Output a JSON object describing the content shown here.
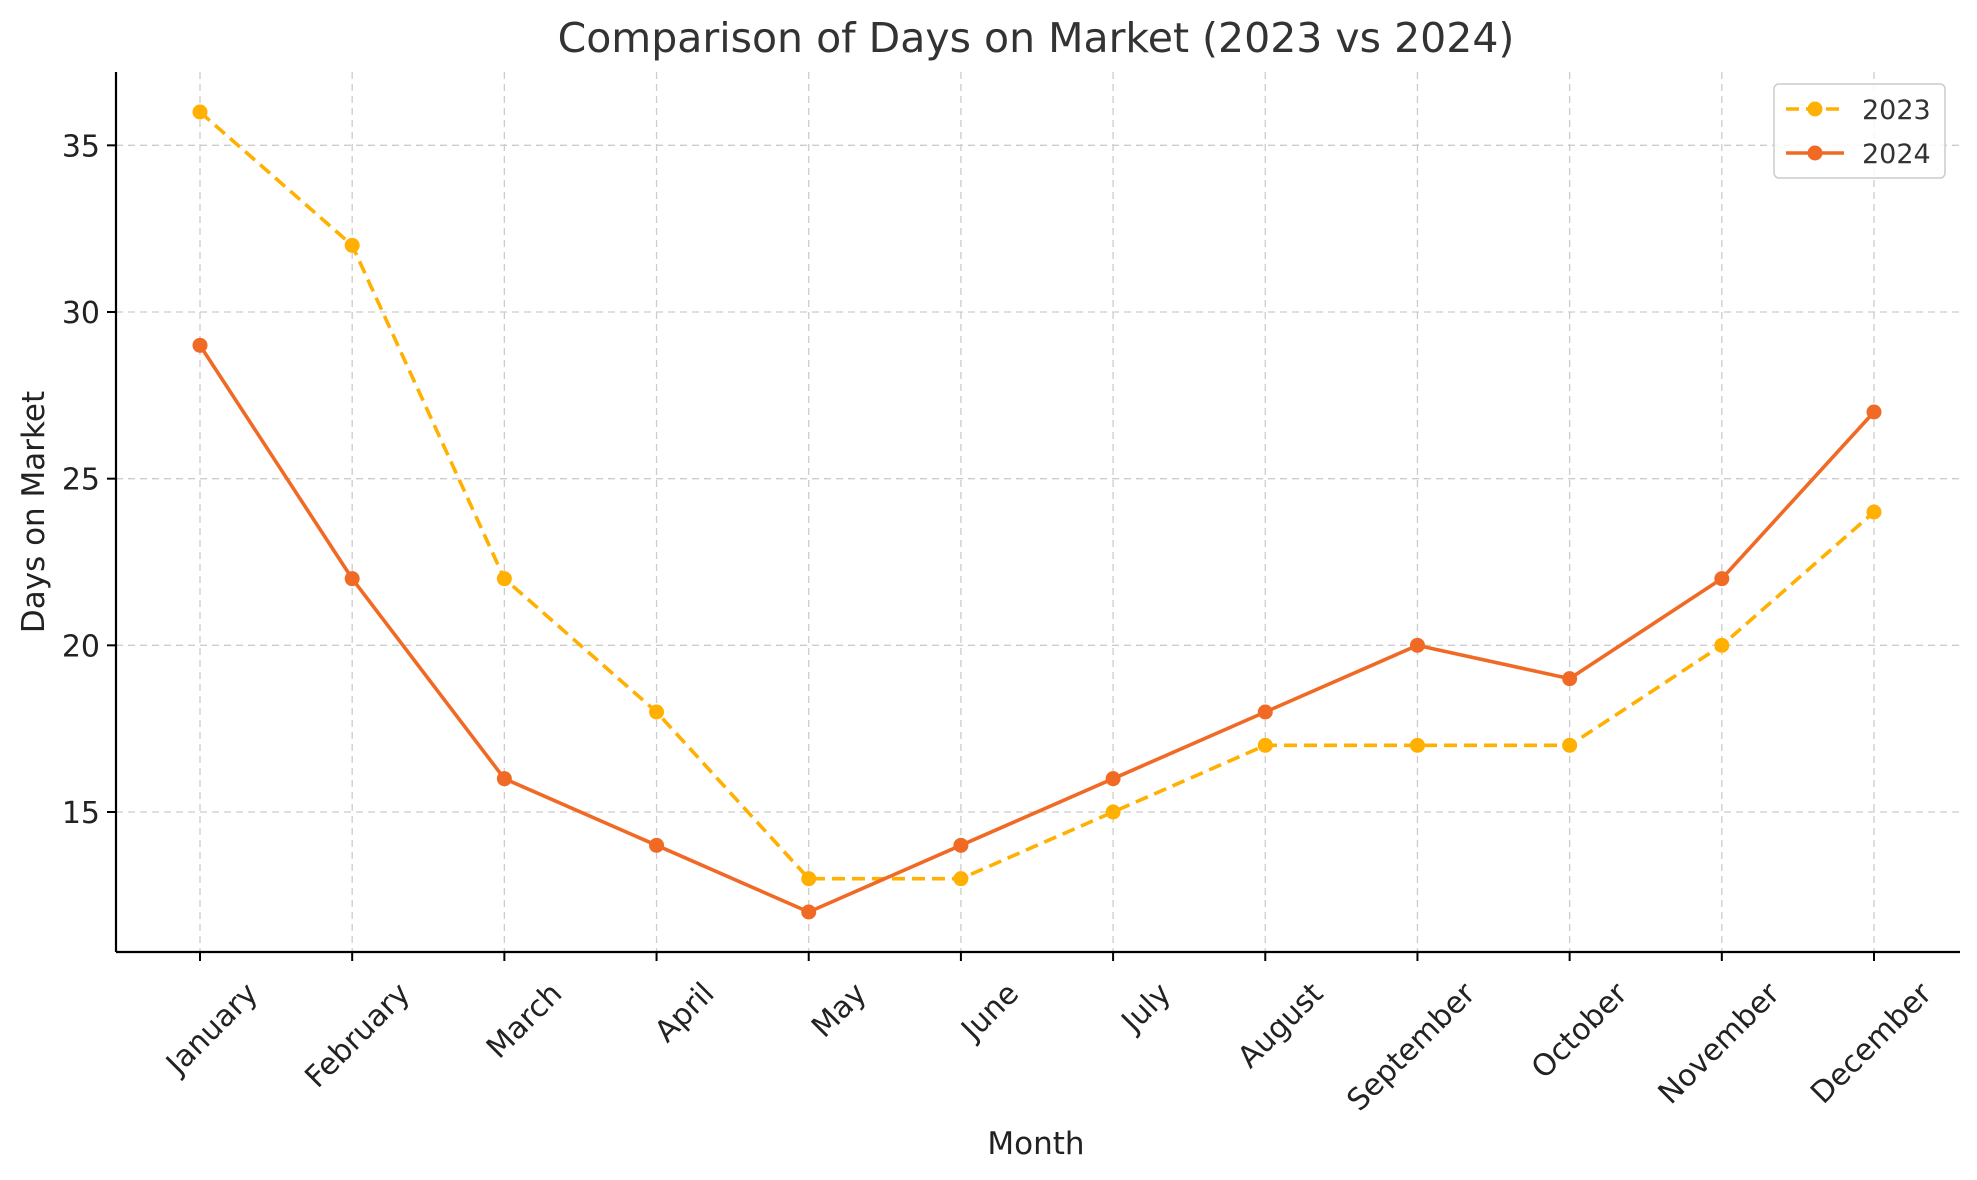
{
  "chart_data": {
    "type": "line",
    "title": "Comparison of Days on Market (2023 vs 2024)",
    "xlabel": "Month",
    "ylabel": "Days on Market",
    "categories": [
      "January",
      "February",
      "March",
      "April",
      "May",
      "June",
      "July",
      "August",
      "September",
      "October",
      "November",
      "December"
    ],
    "ylim": [
      10.8,
      37.2
    ],
    "yticks": [
      15,
      20,
      25,
      30,
      35
    ],
    "grid": true,
    "legend_position": "top-right",
    "series": [
      {
        "name": "2023",
        "values": [
          36,
          32,
          22,
          18,
          13,
          13,
          15,
          17,
          17,
          17,
          20,
          24
        ],
        "color": "#ffb000",
        "line_style": "dashed",
        "marker": "circle"
      },
      {
        "name": "2024",
        "values": [
          29,
          22,
          16,
          14,
          12,
          14,
          16,
          18,
          20,
          19,
          22,
          27
        ],
        "color": "#f06a25",
        "line_style": "solid",
        "marker": "circle"
      }
    ]
  }
}
